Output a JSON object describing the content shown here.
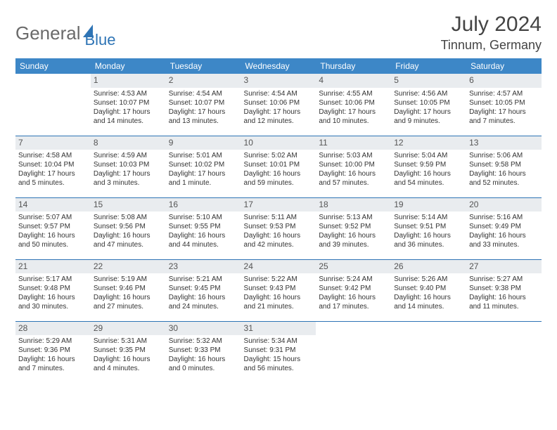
{
  "logo": {
    "part1": "General",
    "part2": "Blue"
  },
  "title": "July 2024",
  "location": "Tinnum, Germany",
  "weekdays": [
    "Sunday",
    "Monday",
    "Tuesday",
    "Wednesday",
    "Thursday",
    "Friday",
    "Saturday"
  ],
  "colors": {
    "header_bg": "#3d87c7",
    "accent": "#2e74b5",
    "daynum_bg": "#e9ecef"
  },
  "weeks": [
    [
      {
        "n": "",
        "sr": "",
        "ss": "",
        "dl": ""
      },
      {
        "n": "1",
        "sr": "Sunrise: 4:53 AM",
        "ss": "Sunset: 10:07 PM",
        "dl": "Daylight: 17 hours and 14 minutes."
      },
      {
        "n": "2",
        "sr": "Sunrise: 4:54 AM",
        "ss": "Sunset: 10:07 PM",
        "dl": "Daylight: 17 hours and 13 minutes."
      },
      {
        "n": "3",
        "sr": "Sunrise: 4:54 AM",
        "ss": "Sunset: 10:06 PM",
        "dl": "Daylight: 17 hours and 12 minutes."
      },
      {
        "n": "4",
        "sr": "Sunrise: 4:55 AM",
        "ss": "Sunset: 10:06 PM",
        "dl": "Daylight: 17 hours and 10 minutes."
      },
      {
        "n": "5",
        "sr": "Sunrise: 4:56 AM",
        "ss": "Sunset: 10:05 PM",
        "dl": "Daylight: 17 hours and 9 minutes."
      },
      {
        "n": "6",
        "sr": "Sunrise: 4:57 AM",
        "ss": "Sunset: 10:05 PM",
        "dl": "Daylight: 17 hours and 7 minutes."
      }
    ],
    [
      {
        "n": "7",
        "sr": "Sunrise: 4:58 AM",
        "ss": "Sunset: 10:04 PM",
        "dl": "Daylight: 17 hours and 5 minutes."
      },
      {
        "n": "8",
        "sr": "Sunrise: 4:59 AM",
        "ss": "Sunset: 10:03 PM",
        "dl": "Daylight: 17 hours and 3 minutes."
      },
      {
        "n": "9",
        "sr": "Sunrise: 5:01 AM",
        "ss": "Sunset: 10:02 PM",
        "dl": "Daylight: 17 hours and 1 minute."
      },
      {
        "n": "10",
        "sr": "Sunrise: 5:02 AM",
        "ss": "Sunset: 10:01 PM",
        "dl": "Daylight: 16 hours and 59 minutes."
      },
      {
        "n": "11",
        "sr": "Sunrise: 5:03 AM",
        "ss": "Sunset: 10:00 PM",
        "dl": "Daylight: 16 hours and 57 minutes."
      },
      {
        "n": "12",
        "sr": "Sunrise: 5:04 AM",
        "ss": "Sunset: 9:59 PM",
        "dl": "Daylight: 16 hours and 54 minutes."
      },
      {
        "n": "13",
        "sr": "Sunrise: 5:06 AM",
        "ss": "Sunset: 9:58 PM",
        "dl": "Daylight: 16 hours and 52 minutes."
      }
    ],
    [
      {
        "n": "14",
        "sr": "Sunrise: 5:07 AM",
        "ss": "Sunset: 9:57 PM",
        "dl": "Daylight: 16 hours and 50 minutes."
      },
      {
        "n": "15",
        "sr": "Sunrise: 5:08 AM",
        "ss": "Sunset: 9:56 PM",
        "dl": "Daylight: 16 hours and 47 minutes."
      },
      {
        "n": "16",
        "sr": "Sunrise: 5:10 AM",
        "ss": "Sunset: 9:55 PM",
        "dl": "Daylight: 16 hours and 44 minutes."
      },
      {
        "n": "17",
        "sr": "Sunrise: 5:11 AM",
        "ss": "Sunset: 9:53 PM",
        "dl": "Daylight: 16 hours and 42 minutes."
      },
      {
        "n": "18",
        "sr": "Sunrise: 5:13 AM",
        "ss": "Sunset: 9:52 PM",
        "dl": "Daylight: 16 hours and 39 minutes."
      },
      {
        "n": "19",
        "sr": "Sunrise: 5:14 AM",
        "ss": "Sunset: 9:51 PM",
        "dl": "Daylight: 16 hours and 36 minutes."
      },
      {
        "n": "20",
        "sr": "Sunrise: 5:16 AM",
        "ss": "Sunset: 9:49 PM",
        "dl": "Daylight: 16 hours and 33 minutes."
      }
    ],
    [
      {
        "n": "21",
        "sr": "Sunrise: 5:17 AM",
        "ss": "Sunset: 9:48 PM",
        "dl": "Daylight: 16 hours and 30 minutes."
      },
      {
        "n": "22",
        "sr": "Sunrise: 5:19 AM",
        "ss": "Sunset: 9:46 PM",
        "dl": "Daylight: 16 hours and 27 minutes."
      },
      {
        "n": "23",
        "sr": "Sunrise: 5:21 AM",
        "ss": "Sunset: 9:45 PM",
        "dl": "Daylight: 16 hours and 24 minutes."
      },
      {
        "n": "24",
        "sr": "Sunrise: 5:22 AM",
        "ss": "Sunset: 9:43 PM",
        "dl": "Daylight: 16 hours and 21 minutes."
      },
      {
        "n": "25",
        "sr": "Sunrise: 5:24 AM",
        "ss": "Sunset: 9:42 PM",
        "dl": "Daylight: 16 hours and 17 minutes."
      },
      {
        "n": "26",
        "sr": "Sunrise: 5:26 AM",
        "ss": "Sunset: 9:40 PM",
        "dl": "Daylight: 16 hours and 14 minutes."
      },
      {
        "n": "27",
        "sr": "Sunrise: 5:27 AM",
        "ss": "Sunset: 9:38 PM",
        "dl": "Daylight: 16 hours and 11 minutes."
      }
    ],
    [
      {
        "n": "28",
        "sr": "Sunrise: 5:29 AM",
        "ss": "Sunset: 9:36 PM",
        "dl": "Daylight: 16 hours and 7 minutes."
      },
      {
        "n": "29",
        "sr": "Sunrise: 5:31 AM",
        "ss": "Sunset: 9:35 PM",
        "dl": "Daylight: 16 hours and 4 minutes."
      },
      {
        "n": "30",
        "sr": "Sunrise: 5:32 AM",
        "ss": "Sunset: 9:33 PM",
        "dl": "Daylight: 16 hours and 0 minutes."
      },
      {
        "n": "31",
        "sr": "Sunrise: 5:34 AM",
        "ss": "Sunset: 9:31 PM",
        "dl": "Daylight: 15 hours and 56 minutes."
      },
      {
        "n": "",
        "sr": "",
        "ss": "",
        "dl": ""
      },
      {
        "n": "",
        "sr": "",
        "ss": "",
        "dl": ""
      },
      {
        "n": "",
        "sr": "",
        "ss": "",
        "dl": ""
      }
    ]
  ]
}
